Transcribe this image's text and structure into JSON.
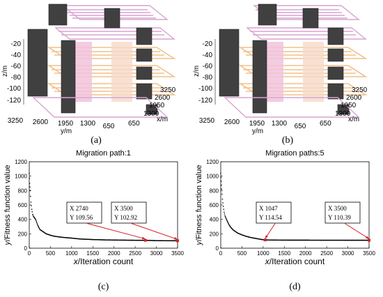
{
  "top_panels": [
    {
      "caption": "(a)",
      "z_label": "z/m",
      "y_label": "y/m",
      "x_label": "x/m",
      "z_ticks": [
        "-20",
        "-40",
        "-60",
        "-80",
        "-100",
        "-120"
      ],
      "y_ticks": [
        "3250",
        "2600",
        "1950",
        "1300",
        "650"
      ],
      "x_ticks": [
        "650",
        "1300",
        "1950",
        "2600",
        "3250"
      ]
    },
    {
      "caption": "(b)",
      "z_label": "z/m",
      "y_label": "y/m",
      "x_label": "x/m",
      "z_ticks": [
        "-20",
        "-40",
        "-60",
        "-80",
        "-100",
        "-120"
      ],
      "y_ticks": [
        "3250",
        "2600",
        "1950",
        "1300",
        "650"
      ],
      "x_ticks": [
        "650",
        "1300",
        "1950",
        "2600",
        "3250"
      ]
    }
  ],
  "chart_data": [
    {
      "type": "scatter",
      "title": "Migration path:1",
      "xlabel_var": "x",
      "xlabel_rest": "/Iteration count",
      "ylabel_var": "y",
      "ylabel_rest": "/Fitness function value",
      "caption": "(c)",
      "xlim": [
        0,
        3500
      ],
      "ylim": [
        0,
        1200
      ],
      "xticks": [
        0,
        500,
        1000,
        1500,
        2000,
        2500,
        3000,
        3500
      ],
      "yticks": [
        0,
        200,
        400,
        600,
        800,
        1000,
        1200
      ],
      "x": [
        0,
        10,
        20,
        40,
        60,
        80,
        100,
        150,
        200,
        250,
        300,
        400,
        500,
        600,
        800,
        1000,
        1200,
        1500,
        1800,
        2000,
        2200,
        2500,
        2740,
        3000,
        3200,
        3500
      ],
      "y": [
        1040,
        900,
        800,
        640,
        540,
        470,
        440,
        400,
        320,
        260,
        240,
        200,
        180,
        165,
        150,
        140,
        128,
        120,
        115,
        113,
        112,
        110,
        109.56,
        105,
        104,
        102.92
      ],
      "datatips": [
        {
          "x_label": "X",
          "x_value": "2740",
          "y_label": "Y",
          "y_value": "109.56",
          "x": 2740,
          "y": 109.56
        },
        {
          "x_label": "X",
          "x_value": "3500",
          "y_label": "Y",
          "y_value": "102.92",
          "x": 3500,
          "y": 102.92
        }
      ],
      "marker_color": "#000000",
      "arrow_color": "#d2232a"
    },
    {
      "type": "scatter",
      "title": "Migration paths:5",
      "xlabel_var": "x",
      "xlabel_rest": "/Iteration count",
      "ylabel_var": "y",
      "ylabel_rest": "/Fitness function value",
      "caption": "(d)",
      "xlim": [
        0,
        3500
      ],
      "ylim": [
        0,
        1200
      ],
      "xticks": [
        0,
        500,
        1000,
        1500,
        2000,
        2500,
        3000,
        3500
      ],
      "yticks": [
        0,
        200,
        400,
        600,
        800,
        1000,
        1200
      ],
      "x": [
        0,
        10,
        20,
        40,
        60,
        80,
        100,
        150,
        200,
        250,
        300,
        400,
        500,
        600,
        700,
        800,
        900,
        1000,
        1047,
        1200,
        1500,
        2000,
        2500,
        3000,
        3500
      ],
      "y": [
        1040,
        930,
        820,
        680,
        580,
        500,
        450,
        380,
        320,
        280,
        250,
        210,
        185,
        165,
        150,
        138,
        128,
        118,
        114.54,
        113,
        112,
        111.5,
        111,
        110.6,
        110.39
      ],
      "datatips": [
        {
          "x_label": "X",
          "x_value": "1047",
          "y_label": "Y",
          "y_value": "114.54",
          "x": 1047,
          "y": 114.54
        },
        {
          "x_label": "X",
          "x_value": "3500",
          "y_label": "Y",
          "y_value": "110.39",
          "x": 3500,
          "y": 110.39
        }
      ],
      "marker_color": "#000000",
      "arrow_color": "#d2232a"
    }
  ]
}
